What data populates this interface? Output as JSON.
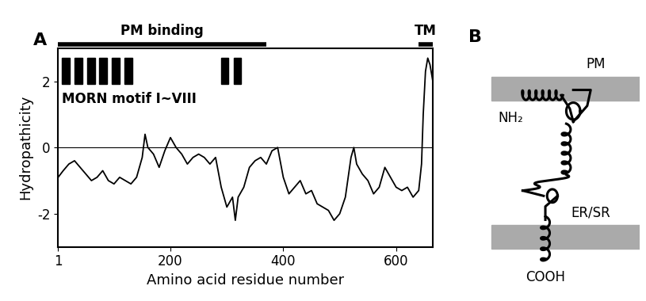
{
  "chart_data": {
    "type": "line",
    "panel_label": "A",
    "xlabel": "Amino acid residue number",
    "ylabel": "Hydropathicity",
    "x": [
      1,
      10,
      20,
      30,
      40,
      50,
      60,
      70,
      80,
      90,
      100,
      110,
      120,
      130,
      140,
      150,
      155,
      160,
      170,
      180,
      190,
      200,
      210,
      220,
      230,
      240,
      250,
      260,
      270,
      280,
      290,
      300,
      310,
      315,
      320,
      330,
      340,
      350,
      360,
      370,
      380,
      390,
      400,
      410,
      420,
      430,
      440,
      450,
      460,
      470,
      480,
      490,
      500,
      510,
      520,
      525,
      530,
      540,
      550,
      560,
      570,
      580,
      590,
      600,
      610,
      620,
      630,
      640,
      645,
      648,
      652,
      656,
      660,
      665
    ],
    "values": [
      -0.9,
      -0.7,
      -0.5,
      -0.4,
      -0.6,
      -0.8,
      -1.0,
      -0.9,
      -0.7,
      -1.0,
      -1.1,
      -0.9,
      -1.0,
      -1.1,
      -0.9,
      -0.3,
      0.4,
      0.0,
      -0.2,
      -0.6,
      -0.1,
      0.3,
      0.0,
      -0.2,
      -0.5,
      -0.3,
      -0.2,
      -0.3,
      -0.5,
      -0.3,
      -1.2,
      -1.8,
      -1.5,
      -2.2,
      -1.5,
      -1.2,
      -0.6,
      -0.4,
      -0.3,
      -0.5,
      -0.1,
      0.0,
      -0.9,
      -1.4,
      -1.2,
      -1.0,
      -1.4,
      -1.3,
      -1.7,
      -1.8,
      -1.9,
      -2.2,
      -2.0,
      -1.5,
      -0.3,
      0.0,
      -0.5,
      -0.8,
      -1.0,
      -1.4,
      -1.2,
      -0.6,
      -0.9,
      -1.2,
      -1.3,
      -1.2,
      -1.5,
      -1.3,
      -0.5,
      1.0,
      2.3,
      2.7,
      2.5,
      2.0
    ],
    "color": "#000000",
    "xlim": [
      1,
      665
    ],
    "ylim": [
      -3,
      3
    ],
    "xticks": [
      1,
      200,
      400,
      600
    ],
    "yticks": [
      -2,
      0,
      2
    ],
    "grid": false,
    "hlines": [
      0
    ],
    "annotations": [
      {
        "text": "PM binding",
        "start": 1,
        "end": 370
      },
      {
        "text": "TM",
        "start": 640,
        "end": 665
      },
      {
        "text": "MORN motif I~VIII",
        "motifs": [
          [
            8,
            22
          ],
          [
            30,
            44
          ],
          [
            52,
            66
          ],
          [
            74,
            88
          ],
          [
            96,
            110
          ],
          [
            118,
            132
          ],
          [
            290,
            303
          ],
          [
            312,
            325
          ]
        ]
      }
    ]
  },
  "diagram": {
    "panel_label": "B",
    "membranes": [
      {
        "label": "PM"
      },
      {
        "label": "ER/SR"
      }
    ],
    "termini": [
      {
        "label": "NH₂"
      },
      {
        "label": "COOH"
      }
    ]
  }
}
